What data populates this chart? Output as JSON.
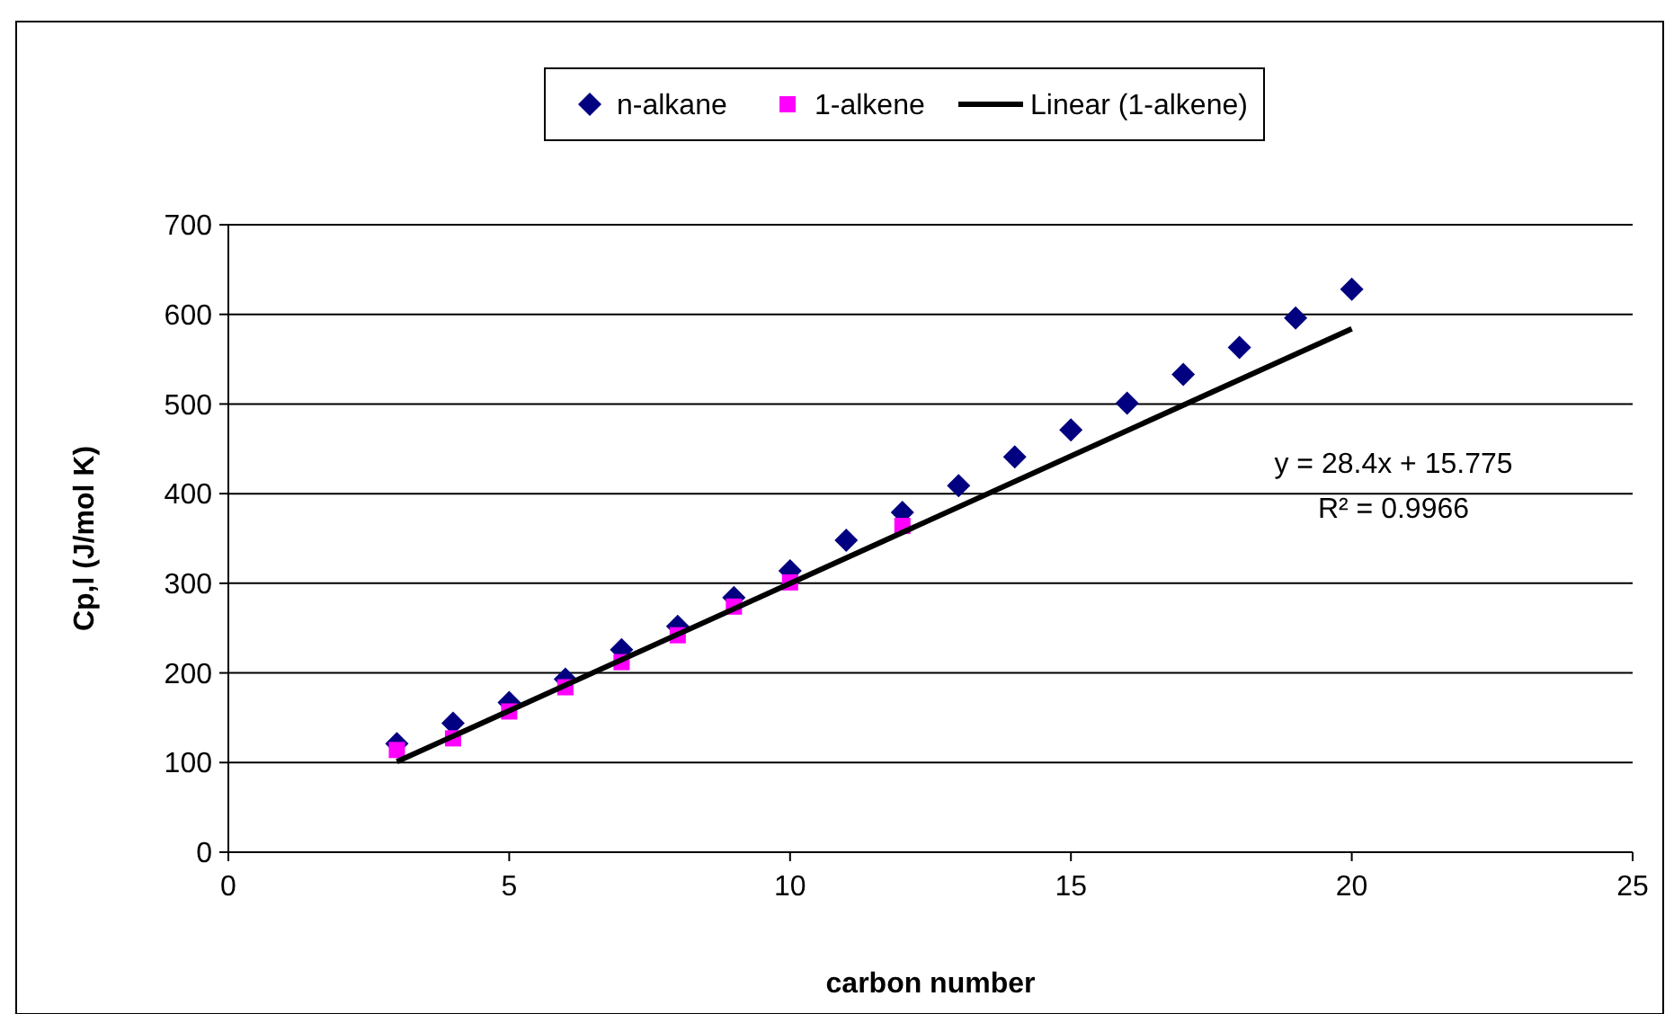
{
  "chart_data": {
    "type": "scatter",
    "xlabel": "carbon number",
    "ylabel": "Cp,l (J/mol K)",
    "xlim": [
      0,
      25
    ],
    "xticks": [
      0,
      5,
      10,
      15,
      20,
      25
    ],
    "ylim": [
      0,
      700
    ],
    "yticks": [
      0,
      100,
      200,
      300,
      400,
      500,
      600,
      700
    ],
    "grid": "y",
    "legend": "top",
    "series": [
      {
        "name": "n-alkane",
        "color": "#000080",
        "marker": "diamond",
        "x": [
          3,
          4,
          5,
          6,
          7,
          8,
          9,
          10,
          11,
          12,
          13,
          14,
          15,
          16,
          17,
          18,
          19,
          20
        ],
        "values": [
          121,
          144,
          167,
          193,
          226,
          252,
          284,
          314,
          348,
          379,
          409,
          441,
          471,
          501,
          533,
          563,
          596,
          628
        ]
      },
      {
        "name": "1-alkene",
        "color": "#ff00ff",
        "marker": "square",
        "x": [
          3,
          4,
          5,
          6,
          7,
          8,
          9,
          10,
          12
        ],
        "values": [
          114,
          127,
          157,
          184,
          212,
          242,
          274,
          301,
          364
        ]
      },
      {
        "name": "Linear (1-alkene)",
        "type": "line",
        "color": "#000000",
        "marker": "none",
        "x": [
          3,
          20
        ],
        "values": [
          101,
          584
        ]
      }
    ],
    "annotations": [
      "y = 28.4x + 15.775",
      "R² = 0.9966"
    ]
  }
}
